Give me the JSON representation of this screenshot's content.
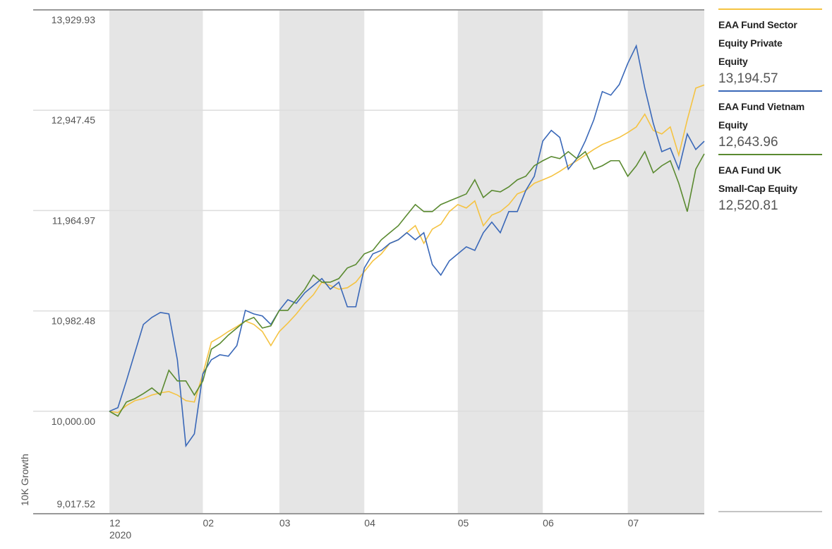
{
  "chart_data": {
    "type": "line",
    "y_label": "10K Growth",
    "x_sublabel": "2020",
    "categories": [
      "12",
      null,
      null,
      null,
      null,
      null,
      null,
      null,
      null,
      null,
      null,
      "02",
      null,
      null,
      null,
      null,
      null,
      null,
      null,
      null,
      "03",
      null,
      null,
      null,
      null,
      null,
      null,
      null,
      null,
      null,
      "04",
      null,
      null,
      null,
      null,
      null,
      null,
      null,
      null,
      null,
      null,
      "05",
      null,
      null,
      null,
      null,
      null,
      null,
      null,
      null,
      null,
      "06",
      null,
      null,
      null,
      null,
      null,
      null,
      null,
      null,
      null,
      "07",
      null,
      null,
      null,
      null,
      null,
      null,
      null,
      null,
      null
    ],
    "ylim": [
      9017.52,
      13929.93
    ],
    "yticks": [
      {
        "value": 9017.52,
        "label": "9,017.52"
      },
      {
        "value": 10000,
        "label": "10,000.00"
      },
      {
        "value": 10982.48,
        "label": "10,982.48"
      },
      {
        "value": 11964.97,
        "label": "11,964.97"
      },
      {
        "value": 12947.45,
        "label": "12,947.45"
      },
      {
        "value": 13929.93,
        "label": "13,929.93"
      }
    ],
    "grid": true,
    "series": [
      {
        "name": "EAA Fund Sector Equity Private Equity",
        "color": "#f5c342",
        "values": [
          10000,
          9986,
          10055,
          10104,
          10124,
          10159,
          10180,
          10193,
          10159,
          10104,
          10090,
          10366,
          10677,
          10725,
          10781,
          10829,
          10884,
          10850,
          10781,
          10643,
          10781,
          10863,
          10953,
          11057,
          11140,
          11264,
          11230,
          11195,
          11209,
          11264,
          11368,
          11472,
          11541,
          11644,
          11679,
          11748,
          11817,
          11644,
          11783,
          11831,
          11955,
          12024,
          11990,
          12059,
          11817,
          11921,
          11955,
          12024,
          12128,
          12162,
          12232,
          12266,
          12301,
          12349,
          12404,
          12453,
          12508,
          12563,
          12612,
          12646,
          12681,
          12729,
          12784,
          12909,
          12750,
          12715,
          12784,
          12508,
          12853,
          13164,
          13194.57
        ],
        "value_labels": [
          null,
          null,
          null,
          null,
          null,
          null,
          null,
          null,
          null,
          null,
          null,
          null,
          null,
          null,
          null,
          null,
          null,
          null,
          null,
          null,
          null,
          null,
          null,
          null,
          null,
          null,
          null,
          null,
          null,
          null,
          null,
          null,
          null,
          null,
          null,
          null,
          null,
          null,
          null,
          null,
          null,
          null,
          null,
          null,
          null,
          null,
          null,
          null,
          null,
          null,
          null,
          null,
          null,
          null,
          null,
          null,
          null,
          null,
          null,
          null,
          null,
          null,
          null,
          null,
          null,
          null,
          null,
          null,
          null,
          null,
          "13,194.57"
        ]
      },
      {
        "name": "EAA Fund Vietnam Equity",
        "color": "#3a68b8",
        "values": [
          10000,
          10035,
          10297,
          10574,
          10850,
          10919,
          10967,
          10953,
          10504,
          9661,
          9779,
          10366,
          10504,
          10553,
          10539,
          10643,
          10988,
          10953,
          10933,
          10850,
          10988,
          11092,
          11057,
          11161,
          11230,
          11299,
          11195,
          11264,
          11023,
          11023,
          11403,
          11541,
          11575,
          11644,
          11679,
          11748,
          11679,
          11748,
          11437,
          11333,
          11472,
          11541,
          11610,
          11575,
          11748,
          11852,
          11748,
          11955,
          11955,
          12162,
          12301,
          12646,
          12750,
          12681,
          12370,
          12474,
          12646,
          12853,
          13130,
          13095,
          13199,
          13406,
          13578,
          13164,
          12819,
          12542,
          12577,
          12370,
          12715,
          12563,
          12643.96
        ],
        "value_labels": [
          null,
          null,
          null,
          null,
          null,
          null,
          null,
          null,
          null,
          null,
          null,
          null,
          null,
          null,
          null,
          null,
          null,
          null,
          null,
          null,
          null,
          null,
          null,
          null,
          null,
          null,
          null,
          null,
          null,
          null,
          null,
          null,
          null,
          null,
          null,
          null,
          null,
          null,
          null,
          null,
          null,
          null,
          null,
          null,
          null,
          null,
          null,
          null,
          null,
          null,
          null,
          null,
          null,
          null,
          null,
          null,
          null,
          null,
          null,
          null,
          null,
          null,
          null,
          null,
          null,
          null,
          null,
          null,
          null,
          null,
          "12,643.96"
        ]
      },
      {
        "name": "EAA Fund UK Small-Cap Equity",
        "color": "#5a8a30",
        "values": [
          10000,
          9952,
          10090,
          10124,
          10173,
          10228,
          10159,
          10401,
          10297,
          10297,
          10159,
          10297,
          10608,
          10663,
          10746,
          10815,
          10884,
          10919,
          10815,
          10836,
          10988,
          10988,
          11092,
          11195,
          11333,
          11264,
          11264,
          11299,
          11403,
          11437,
          11541,
          11575,
          11679,
          11748,
          11817,
          11921,
          12024,
          11955,
          11955,
          12024,
          12059,
          12093,
          12128,
          12266,
          12093,
          12162,
          12148,
          12197,
          12266,
          12301,
          12404,
          12453,
          12494,
          12474,
          12542,
          12474,
          12542,
          12370,
          12404,
          12453,
          12453,
          12301,
          12404,
          12542,
          12335,
          12404,
          12453,
          12232,
          11955,
          12370,
          12520.81
        ],
        "value_labels": [
          null,
          null,
          null,
          null,
          null,
          null,
          null,
          null,
          null,
          null,
          null,
          null,
          null,
          null,
          null,
          null,
          null,
          null,
          null,
          null,
          null,
          null,
          null,
          null,
          null,
          null,
          null,
          null,
          null,
          null,
          null,
          null,
          null,
          null,
          null,
          null,
          null,
          null,
          null,
          null,
          null,
          null,
          null,
          null,
          null,
          null,
          null,
          null,
          null,
          null,
          null,
          null,
          null,
          null,
          null,
          null,
          null,
          null,
          null,
          null,
          null,
          null,
          null,
          null,
          null,
          null,
          null,
          null,
          null,
          null,
          "12,520.81"
        ]
      }
    ]
  }
}
